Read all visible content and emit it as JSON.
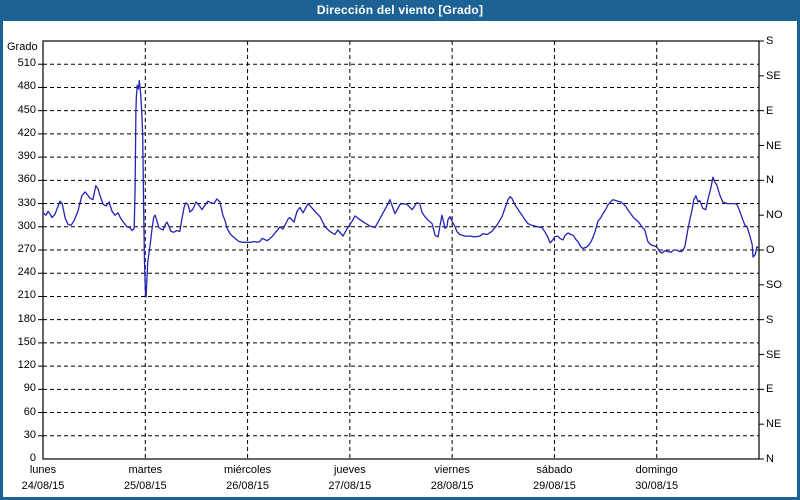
{
  "window": {
    "title": "Dirección del viento [Grado]"
  },
  "colors": {
    "titlebar": "#1d6294",
    "frame": "#1d6294",
    "panel_bg": "#ffffff",
    "grid": "#000000",
    "text": "#000000",
    "line": "#2323b4"
  },
  "chart_data": {
    "type": "line",
    "title": "Dirección del viento [Grado]",
    "ylabel": "Grado",
    "ylim": [
      0,
      540
    ],
    "grid": {
      "horizontal_step": 30,
      "vertical_every_hours": 24,
      "style": "dashed"
    },
    "legend": "none",
    "y_left_tick_labels": [
      0,
      30,
      60,
      90,
      120,
      150,
      180,
      210,
      240,
      270,
      300,
      330,
      360,
      390,
      420,
      450,
      480,
      510
    ],
    "y_right_labels": [
      {
        "value": 540,
        "label": "S"
      },
      {
        "value": 495,
        "label": "SE"
      },
      {
        "value": 450,
        "label": "E"
      },
      {
        "value": 405,
        "label": "NE"
      },
      {
        "value": 360,
        "label": "N"
      },
      {
        "value": 315,
        "label": "NO"
      },
      {
        "value": 270,
        "label": "O"
      },
      {
        "value": 225,
        "label": "SO"
      },
      {
        "value": 180,
        "label": "S"
      },
      {
        "value": 135,
        "label": "SE"
      },
      {
        "value": 90,
        "label": "E"
      },
      {
        "value": 45,
        "label": "NE"
      },
      {
        "value": 0,
        "label": "N"
      }
    ],
    "x_hours_range": [
      0,
      168
    ],
    "x_days": [
      {
        "name": "lunes",
        "date": "24/08/15"
      },
      {
        "name": "martes",
        "date": "25/08/15"
      },
      {
        "name": "miércoles",
        "date": "26/08/15"
      },
      {
        "name": "jueves",
        "date": "27/08/15"
      },
      {
        "name": "viernes",
        "date": "28/08/15"
      },
      {
        "name": "sábado",
        "date": "29/08/15"
      },
      {
        "name": "domingo",
        "date": "30/08/15"
      }
    ],
    "series": [
      {
        "name": "Dirección del viento",
        "unit": "Grado",
        "color": "#2323b4",
        "points": [
          [
            0,
            318
          ],
          [
            0.7,
            315
          ],
          [
            1.2,
            320
          ],
          [
            1.6,
            317
          ],
          [
            2.1,
            312
          ],
          [
            2.8,
            316
          ],
          [
            3.5,
            326
          ],
          [
            4,
            333
          ],
          [
            4.5,
            330
          ],
          [
            5.2,
            311
          ],
          [
            5.9,
            303
          ],
          [
            6.6,
            302
          ],
          [
            7.3,
            308
          ],
          [
            8.2,
            320
          ],
          [
            9.1,
            340
          ],
          [
            9.9,
            345
          ],
          [
            10.6,
            340
          ],
          [
            11,
            337
          ],
          [
            11.7,
            335
          ],
          [
            12.4,
            353
          ],
          [
            12.9,
            349
          ],
          [
            13.4,
            340
          ],
          [
            14.1,
            329
          ],
          [
            14.8,
            327
          ],
          [
            15.5,
            332
          ],
          [
            16.2,
            320
          ],
          [
            16.9,
            315
          ],
          [
            17.6,
            318
          ],
          [
            18.3,
            310
          ],
          [
            19,
            305
          ],
          [
            19.7,
            300
          ],
          [
            20.4,
            299
          ],
          [
            20.9,
            295
          ],
          [
            21.4,
            298
          ],
          [
            21.6,
            350
          ],
          [
            21.8,
            449
          ],
          [
            21.9,
            466
          ],
          [
            22.1,
            483
          ],
          [
            22.4,
            478
          ],
          [
            22.6,
            489
          ],
          [
            22.9,
            473
          ],
          [
            23.2,
            445
          ],
          [
            23.4,
            417
          ],
          [
            23.6,
            330
          ],
          [
            23.8,
            260
          ],
          [
            24,
            218
          ],
          [
            24.2,
            209
          ],
          [
            24.4,
            235
          ],
          [
            24.6,
            255
          ],
          [
            25.1,
            275
          ],
          [
            25.6,
            298
          ],
          [
            26,
            313
          ],
          [
            26.3,
            315
          ],
          [
            26.7,
            308
          ],
          [
            27.2,
            299
          ],
          [
            27.7,
            297
          ],
          [
            28.2,
            296
          ],
          [
            28.6,
            302
          ],
          [
            29.1,
            306
          ],
          [
            29.6,
            300
          ],
          [
            30,
            294
          ],
          [
            30.7,
            293
          ],
          [
            31.4,
            295
          ],
          [
            32.1,
            294
          ],
          [
            32.6,
            310
          ],
          [
            33.1,
            325
          ],
          [
            33.5,
            331
          ],
          [
            34,
            329
          ],
          [
            34.5,
            319
          ],
          [
            35.2,
            323
          ],
          [
            35.9,
            332
          ],
          [
            36.6,
            328
          ],
          [
            37.3,
            322
          ],
          [
            38,
            328
          ],
          [
            38.7,
            333
          ],
          [
            39.4,
            331
          ],
          [
            40.1,
            330
          ],
          [
            40.8,
            336
          ],
          [
            41.5,
            332
          ],
          [
            42.2,
            315
          ],
          [
            42.7,
            308
          ],
          [
            43.2,
            298
          ],
          [
            43.9,
            291
          ],
          [
            44.6,
            287
          ],
          [
            45.3,
            284
          ],
          [
            46,
            281
          ],
          [
            46.7,
            280
          ],
          [
            47.4,
            280
          ],
          [
            48.1,
            280
          ],
          [
            48.8,
            280
          ],
          [
            49.5,
            281
          ],
          [
            50.2,
            280
          ],
          [
            50.9,
            281
          ],
          [
            51.4,
            285
          ],
          [
            52.6,
            282
          ],
          [
            53.7,
            287
          ],
          [
            54.9,
            295
          ],
          [
            55.6,
            300
          ],
          [
            56.3,
            297
          ],
          [
            57.5,
            310
          ],
          [
            57.9,
            312
          ],
          [
            58.9,
            306
          ],
          [
            59.6,
            320
          ],
          [
            60.3,
            325
          ],
          [
            61,
            318
          ],
          [
            62.2,
            330
          ],
          [
            63.3,
            323
          ],
          [
            64.3,
            317
          ],
          [
            65,
            313
          ],
          [
            66.2,
            300
          ],
          [
            67.3,
            294
          ],
          [
            68.5,
            290
          ],
          [
            69.2,
            296
          ],
          [
            70.4,
            288
          ],
          [
            71.3,
            297
          ],
          [
            72.5,
            307
          ],
          [
            73.2,
            314
          ],
          [
            74.4,
            309
          ],
          [
            75.5,
            305
          ],
          [
            76.7,
            301
          ],
          [
            77.9,
            299
          ],
          [
            79.1,
            311
          ],
          [
            80.2,
            322
          ],
          [
            80.9,
            329
          ],
          [
            81.4,
            335
          ],
          [
            82.6,
            317
          ],
          [
            83.8,
            329
          ],
          [
            84.5,
            330
          ],
          [
            85.4,
            329
          ],
          [
            86.6,
            322
          ],
          [
            87.7,
            331
          ],
          [
            88.4,
            330
          ],
          [
            88.9,
            319
          ],
          [
            89.6,
            313
          ],
          [
            90.3,
            309
          ],
          [
            91.3,
            304
          ],
          [
            92,
            289
          ],
          [
            92.7,
            287
          ],
          [
            93.1,
            300
          ],
          [
            93.6,
            315
          ],
          [
            94.1,
            304
          ],
          [
            94.3,
            298
          ],
          [
            94.8,
            300
          ],
          [
            95,
            309
          ],
          [
            95.5,
            313
          ],
          [
            96,
            307
          ],
          [
            96.7,
            300
          ],
          [
            97.1,
            294
          ],
          [
            97.8,
            290
          ],
          [
            99,
            288
          ],
          [
            100.2,
            288
          ],
          [
            101.3,
            287
          ],
          [
            102.5,
            288
          ],
          [
            103.2,
            291
          ],
          [
            104.2,
            290
          ],
          [
            105.3,
            294
          ],
          [
            106.5,
            302
          ],
          [
            107.7,
            313
          ],
          [
            108.4,
            324
          ],
          [
            109.1,
            335
          ],
          [
            109.6,
            339
          ],
          [
            110,
            337
          ],
          [
            110.8,
            328
          ],
          [
            111.5,
            322
          ],
          [
            112.4,
            315
          ],
          [
            113.1,
            309
          ],
          [
            113.8,
            304
          ],
          [
            114.7,
            302
          ],
          [
            115.4,
            301
          ],
          [
            116.1,
            300
          ],
          [
            117.1,
            299
          ],
          [
            117.8,
            293
          ],
          [
            118.5,
            286
          ],
          [
            119,
            279
          ],
          [
            119.7,
            284
          ],
          [
            120.1,
            287
          ],
          [
            120.8,
            288
          ],
          [
            121.3,
            285
          ],
          [
            122,
            283
          ],
          [
            122.5,
            289
          ],
          [
            123.2,
            292
          ],
          [
            123.9,
            290
          ],
          [
            124.4,
            289
          ],
          [
            125.1,
            283
          ],
          [
            125.5,
            281
          ],
          [
            126.2,
            274
          ],
          [
            126.7,
            272
          ],
          [
            127.6,
            274
          ],
          [
            128.3,
            278
          ],
          [
            128.8,
            283
          ],
          [
            129.5,
            293
          ],
          [
            130.2,
            307
          ],
          [
            130.9,
            312
          ],
          [
            131.4,
            317
          ],
          [
            132.1,
            323
          ],
          [
            132.5,
            328
          ],
          [
            133.2,
            332
          ],
          [
            133.7,
            335
          ],
          [
            134.4,
            334
          ],
          [
            134.9,
            333
          ],
          [
            135.6,
            332
          ],
          [
            136.1,
            330
          ],
          [
            136.8,
            326
          ],
          [
            137.2,
            322
          ],
          [
            137.9,
            317
          ],
          [
            138.4,
            313
          ],
          [
            139.1,
            309
          ],
          [
            139.6,
            307
          ],
          [
            140.3,
            302
          ],
          [
            140.8,
            298
          ],
          [
            141.2,
            296
          ],
          [
            141.9,
            281
          ],
          [
            142.4,
            278
          ],
          [
            142.9,
            276
          ],
          [
            143.6,
            275
          ],
          [
            144,
            274
          ],
          [
            144.7,
            268
          ],
          [
            145.2,
            266
          ],
          [
            145.9,
            269
          ],
          [
            146.6,
            268
          ],
          [
            147.3,
            267
          ],
          [
            148,
            270
          ],
          [
            148.7,
            270
          ],
          [
            149.4,
            268
          ],
          [
            149.9,
            268
          ],
          [
            150.6,
            274
          ],
          [
            151.3,
            296
          ],
          [
            151.8,
            310
          ],
          [
            152.3,
            322
          ],
          [
            152.7,
            335
          ],
          [
            153.2,
            340
          ],
          [
            153.7,
            332
          ],
          [
            154.1,
            334
          ],
          [
            154.8,
            324
          ],
          [
            155.5,
            322
          ],
          [
            156,
            335
          ],
          [
            156.7,
            350
          ],
          [
            157.2,
            364
          ],
          [
            157.6,
            358
          ],
          [
            158.1,
            354
          ],
          [
            158.8,
            341
          ],
          [
            159.5,
            332
          ],
          [
            160.5,
            330
          ],
          [
            161.2,
            330
          ],
          [
            162.1,
            330
          ],
          [
            162.8,
            329
          ],
          [
            163.5,
            320
          ],
          [
            164.2,
            309
          ],
          [
            164.7,
            302
          ],
          [
            165.2,
            300
          ],
          [
            165.9,
            287
          ],
          [
            166.4,
            277
          ],
          [
            166.6,
            261
          ],
          [
            167.1,
            264
          ],
          [
            167.5,
            274
          ],
          [
            168,
            273
          ]
        ]
      }
    ]
  }
}
